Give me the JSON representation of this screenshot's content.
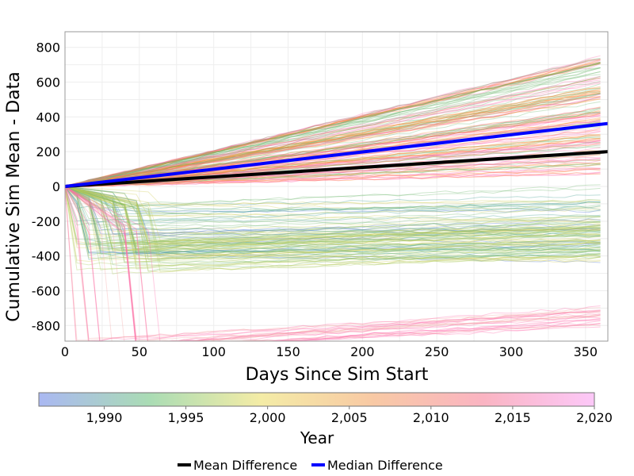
{
  "chart_data": {
    "type": "line",
    "xlabel": "Days Since Sim Start",
    "ylabel": "Cumulative Sim Mean - Data",
    "xlim": [
      0,
      365
    ],
    "ylim": [
      -890,
      890
    ],
    "x_ticks": [
      "0",
      "50",
      "100",
      "150",
      "200",
      "250",
      "300",
      "350"
    ],
    "x_tick_values": [
      0,
      50,
      100,
      150,
      200,
      250,
      300,
      350
    ],
    "y_ticks": [
      "800",
      "600",
      "400",
      "200",
      "0",
      "-200",
      "-400",
      "-600",
      "-800"
    ],
    "y_tick_values": [
      800,
      600,
      400,
      200,
      0,
      -200,
      -400,
      -600,
      -800
    ],
    "grid": true,
    "series": [
      {
        "name": "Mean Difference",
        "color": "#000000",
        "x": [
          0,
          365
        ],
        "y": [
          0,
          200
        ]
      },
      {
        "name": "Median Difference",
        "color": "#0000ff",
        "x": [
          0,
          365
        ],
        "y": [
          0,
          362
        ]
      }
    ],
    "colorbar": {
      "title": "Year",
      "range": [
        1986,
        2020
      ],
      "tick_labels": [
        "1,990",
        "1,995",
        "2,000",
        "2,005",
        "2,010",
        "2,015",
        "2,020"
      ],
      "tick_values": [
        1990,
        1995,
        2000,
        2005,
        2010,
        2015,
        2020
      ],
      "colors": [
        "#aab8f2",
        "#aadcb4",
        "#f4eca6",
        "#f8c9a4",
        "#fab4c2",
        "#fcc8f8"
      ]
    },
    "legend_position": "bottom"
  }
}
